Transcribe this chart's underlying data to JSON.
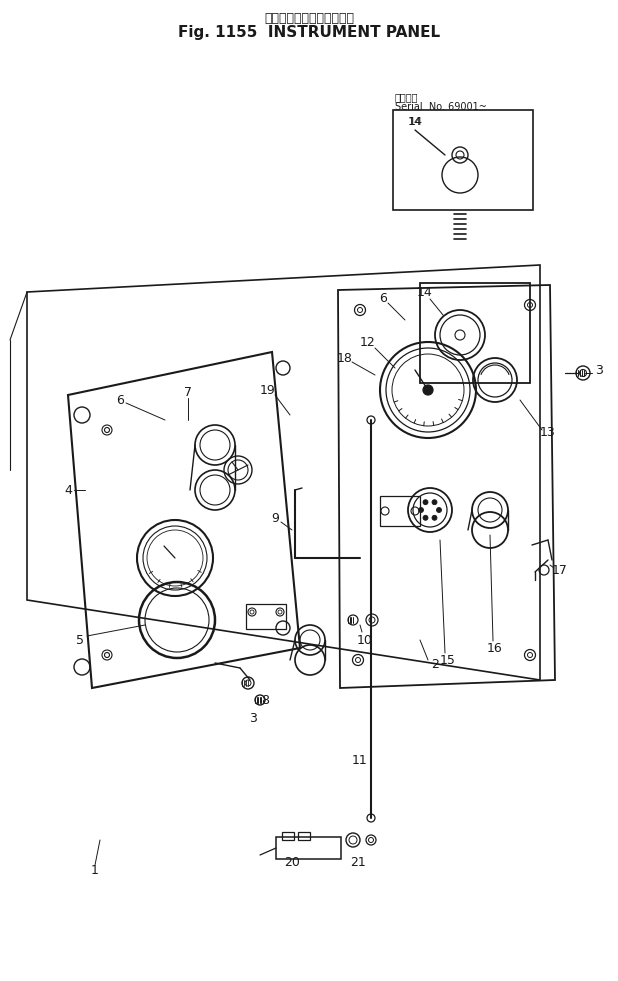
{
  "title_jp": "インスツルメント　パネル",
  "title_en": "Fig. 1155  INSTRUMENT PANEL",
  "serial_label_jp": "適用番号",
  "serial_label_en": "Serial  No. 69001~",
  "bg": "#ffffff",
  "lc": "#1a1a1a"
}
